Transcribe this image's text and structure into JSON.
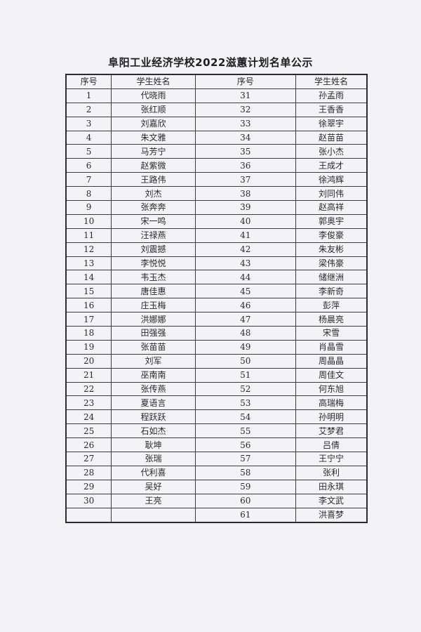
{
  "title": "阜阳工业经济学校2022滋蕙计划名单公示",
  "headers": [
    "序号",
    "学生姓名",
    "序号",
    "学生姓名"
  ],
  "left": [
    [
      "1",
      "代晓雨"
    ],
    [
      "2",
      "张红顺"
    ],
    [
      "3",
      "刘嘉欣"
    ],
    [
      "4",
      "朱文雅"
    ],
    [
      "5",
      "马芳宁"
    ],
    [
      "6",
      "赵紫微"
    ],
    [
      "7",
      "王路伟"
    ],
    [
      "8",
      "刘杰"
    ],
    [
      "9",
      "张奔奔"
    ],
    [
      "10",
      "宋一鸣"
    ],
    [
      "11",
      "汪禄燕"
    ],
    [
      "12",
      "刘震撼"
    ],
    [
      "13",
      "李悦悦"
    ],
    [
      "14",
      "韦玉杰"
    ],
    [
      "15",
      "唐佳惠"
    ],
    [
      "16",
      "庄玉梅"
    ],
    [
      "17",
      "洪娜娜"
    ],
    [
      "18",
      "田强强"
    ],
    [
      "19",
      "张苗苗"
    ],
    [
      "20",
      "刘军"
    ],
    [
      "21",
      "巫南南"
    ],
    [
      "22",
      "张传燕"
    ],
    [
      "23",
      "夏语言"
    ],
    [
      "24",
      "程跃跃"
    ],
    [
      "25",
      "石如杰"
    ],
    [
      "26",
      "耿坤"
    ],
    [
      "27",
      "张瑞"
    ],
    [
      "28",
      "代利喜"
    ],
    [
      "29",
      "吴好"
    ],
    [
      "30",
      "王亮"
    ],
    [
      "",
      ""
    ]
  ],
  "right": [
    [
      "31",
      "孙孟雨"
    ],
    [
      "32",
      "王香香"
    ],
    [
      "33",
      "徐翠宇"
    ],
    [
      "34",
      "赵苗苗"
    ],
    [
      "35",
      "张小杰"
    ],
    [
      "36",
      "王成才"
    ],
    [
      "37",
      "徐鸿辉"
    ],
    [
      "38",
      "刘同伟"
    ],
    [
      "39",
      "赵高祥"
    ],
    [
      "40",
      "郭奥宇"
    ],
    [
      "41",
      "李俊豪"
    ],
    [
      "42",
      "朱友彬"
    ],
    [
      "43",
      "梁伟豪"
    ],
    [
      "44",
      "储继洲"
    ],
    [
      "45",
      "李新奇"
    ],
    [
      "46",
      "彭萍"
    ],
    [
      "47",
      "杨晨亮"
    ],
    [
      "48",
      "宋雪"
    ],
    [
      "49",
      "肖晶雪"
    ],
    [
      "50",
      "周晶晶"
    ],
    [
      "51",
      "周佳文"
    ],
    [
      "52",
      "何东旭"
    ],
    [
      "53",
      "高瑞梅"
    ],
    [
      "54",
      "孙明明"
    ],
    [
      "55",
      "艾梦君"
    ],
    [
      "56",
      "吕倩"
    ],
    [
      "57",
      "王宁宁"
    ],
    [
      "58",
      "张利"
    ],
    [
      "59",
      "田永琪"
    ],
    [
      "60",
      "李文武"
    ],
    [
      "61",
      "洪喜梦"
    ]
  ]
}
